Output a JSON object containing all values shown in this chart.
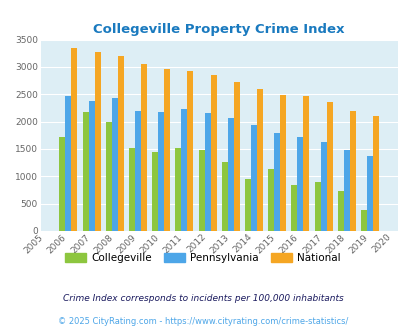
{
  "title": "Collegeville Property Crime Index",
  "years": [
    2006,
    2007,
    2008,
    2009,
    2010,
    2011,
    2012,
    2013,
    2014,
    2015,
    2016,
    2017,
    2018,
    2019
  ],
  "collegeville": [
    1720,
    2175,
    2000,
    1525,
    1450,
    1510,
    1490,
    1270,
    960,
    1140,
    850,
    890,
    730,
    380
  ],
  "pennsylvania": [
    2470,
    2370,
    2430,
    2200,
    2170,
    2225,
    2150,
    2065,
    1935,
    1795,
    1710,
    1630,
    1490,
    1375
  ],
  "national": [
    3340,
    3265,
    3200,
    3045,
    2960,
    2920,
    2855,
    2725,
    2595,
    2495,
    2470,
    2365,
    2200,
    2100
  ],
  "collegeville_color": "#8dc63f",
  "pennsylvania_color": "#4da6e8",
  "national_color": "#f5a623",
  "bg_color": "#ddeef5",
  "grid_color": "#ffffff",
  "title_color": "#1a7abf",
  "footnote1": "Crime Index corresponds to incidents per 100,000 inhabitants",
  "footnote2": "© 2025 CityRating.com - https://www.cityrating.com/crime-statistics/",
  "footnote1_color": "#1a1a5e",
  "footnote2_color": "#4da6e8",
  "ylim": [
    0,
    3500
  ],
  "yticks": [
    0,
    500,
    1000,
    1500,
    2000,
    2500,
    3000,
    3500
  ],
  "bar_width": 0.26
}
